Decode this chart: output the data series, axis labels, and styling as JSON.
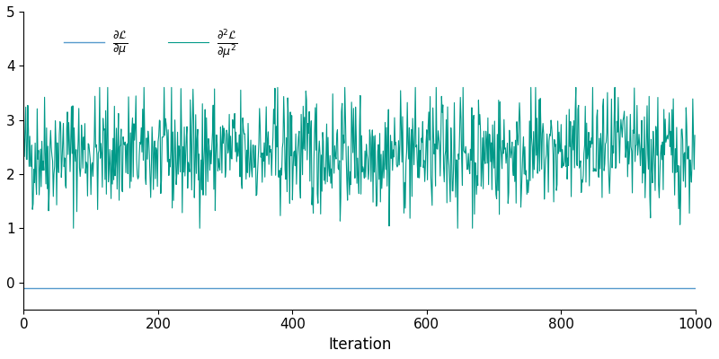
{
  "title": "",
  "xlabel": "Iteration",
  "ylabel": "",
  "xlim": [
    0,
    1000
  ],
  "ylim": [
    -0.5,
    5
  ],
  "yticks": [
    0,
    1,
    2,
    3,
    4,
    5
  ],
  "xticks": [
    0,
    200,
    400,
    600,
    800,
    1000
  ],
  "n_points": 1000,
  "seed": 42,
  "line1_color": "#5599cc",
  "line1_label": "$\\frac{\\partial \\mathcal{L}}{\\partial \\mu}$",
  "line1_value": -0.1,
  "line2_color": "#009988",
  "line2_label": "$\\frac{\\partial^2 \\mathcal{L}}{\\partial \\mu^2}$",
  "line2_mean": 2.4,
  "line2_std": 0.55,
  "line2_min": 1.0,
  "line2_max": 3.6,
  "background_color": "#ffffff",
  "figsize": [
    8.0,
    4.0
  ],
  "dpi": 100,
  "legend_fontsize": 13,
  "xlabel_fontsize": 12,
  "tick_labelsize": 11
}
